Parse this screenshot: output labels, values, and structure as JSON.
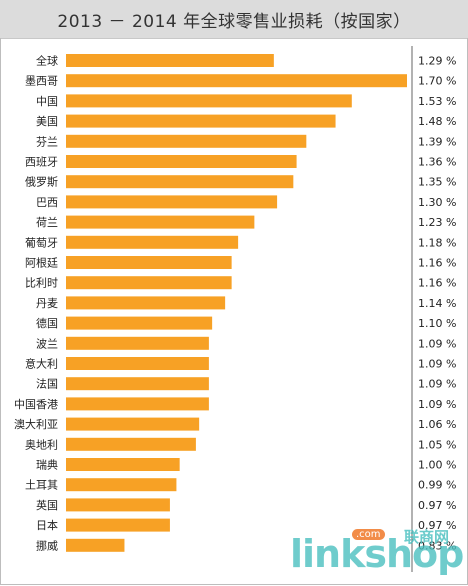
{
  "chart_data": {
    "type": "bar",
    "orientation": "horizontal",
    "title": "2013 － 2014 年全球零售业损耗（按国家）",
    "categories": [
      "全球",
      "墨西哥",
      "中国",
      "美国",
      "芬兰",
      "西班牙",
      "俄罗斯",
      "巴西",
      "荷兰",
      "葡萄牙",
      "阿根廷",
      "比利时",
      "丹麦",
      "德国",
      "波兰",
      "意大利",
      "法国",
      "中国香港",
      "澳大利亚",
      "奥地利",
      "瑞典",
      "土耳其",
      "英国",
      "日本",
      "挪威"
    ],
    "values": [
      1.29,
      1.7,
      1.53,
      1.48,
      1.39,
      1.36,
      1.35,
      1.3,
      1.23,
      1.18,
      1.16,
      1.16,
      1.14,
      1.1,
      1.09,
      1.09,
      1.09,
      1.09,
      1.06,
      1.05,
      1.0,
      0.99,
      0.97,
      0.97,
      0.83
    ],
    "value_labels": [
      "1.29 %",
      "1.70 %",
      "1.53 %",
      "1.48 %",
      "1.39 %",
      "1.36 %",
      "1.35 %",
      "1.30 %",
      "1.23 %",
      "1.18 %",
      "1.16 %",
      "1.16 %",
      "1.14 %",
      "1.10 %",
      "1.09 %",
      "1.09 %",
      "1.09 %",
      "1.09 %",
      "1.06 %",
      "1.05 %",
      "1.00 %",
      "0.99 %",
      "0.97 %",
      "0.97 %",
      "0.83 %"
    ],
    "xlim": [
      0.65,
      1.7
    ],
    "bar_color": "#f7a125",
    "grid": false,
    "legend": "none"
  },
  "watermark": {
    "main": "linkshop",
    "com": ".com",
    "cn": "联商网"
  }
}
